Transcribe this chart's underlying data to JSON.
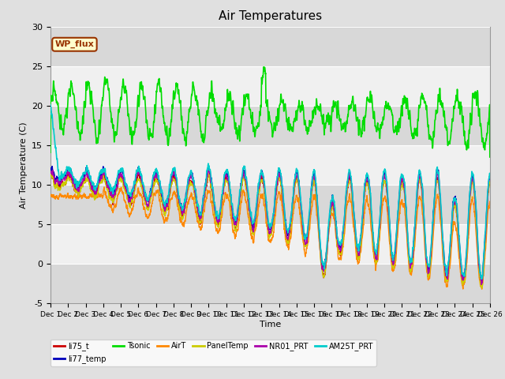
{
  "title": "Air Temperatures",
  "xlabel": "Time",
  "ylabel": "Air Temperature (C)",
  "ylim": [
    -5,
    30
  ],
  "series": {
    "li75_t": {
      "color": "#cc0000",
      "lw": 1.0
    },
    "li77_temp": {
      "color": "#0000bb",
      "lw": 1.0
    },
    "Tsonic": {
      "color": "#00dd00",
      "lw": 1.2
    },
    "AirT": {
      "color": "#ff8800",
      "lw": 1.0
    },
    "PanelTemp": {
      "color": "#cccc00",
      "lw": 1.0
    },
    "NR01_PRT": {
      "color": "#aa00aa",
      "lw": 1.0
    },
    "AM25T_PRT": {
      "color": "#00cccc",
      "lw": 1.2
    }
  },
  "annotation_text": "WP_flux",
  "annotation_bg": "#ffffcc",
  "annotation_border": "#993300",
  "bg_color": "#e0e0e0",
  "plot_bg_color": "#f0f0f0",
  "grid_color": "#ffffff",
  "band_color": "#d8d8d8"
}
